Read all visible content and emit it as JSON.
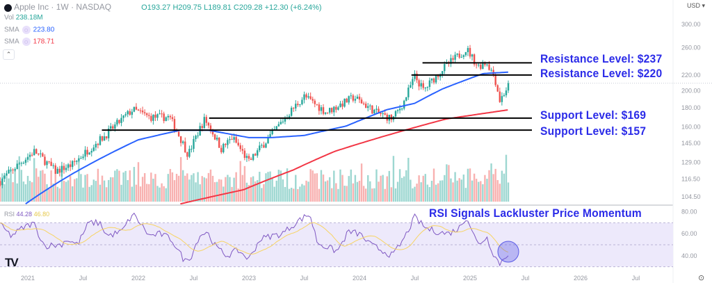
{
  "header": {
    "symbol": "Apple Inc · 1W · NASDAQ",
    "open": "O193.27",
    "high": "H209.75",
    "low": "L189.81",
    "close": "C209.28",
    "change": "+12.30 (+6.24%)",
    "vol_label": "Vol",
    "vol_value": "238.18M",
    "sma1_label": "SMA",
    "sma1_value": "223.80",
    "sma2_label": "SMA",
    "sma2_value": "178.71",
    "currency": "USD ▾"
  },
  "colors": {
    "up": "#26a69a",
    "down": "#ef5350",
    "sma_fast": "#2962ff",
    "sma_slow": "#f23645",
    "annotation": "#2b2be8",
    "rsi": "#7e57c2",
    "rsi_ma": "#f7d463"
  },
  "chart_data": {
    "type": "candlestick",
    "title": "Apple Inc · 1W · NASDAQ",
    "y_scale": "log",
    "price_ticks": [
      300,
      260,
      220,
      200,
      180,
      160,
      145,
      129,
      116.5,
      104.5
    ],
    "price_tick_labels": [
      "300.00",
      "260.00",
      "220.00",
      "200.00",
      "180.00",
      "160.00",
      "145.00",
      "129.00",
      "116.50",
      "104.50"
    ],
    "x_ticks": [
      {
        "t": 2021,
        "label": "2021"
      },
      {
        "t": 2021.5,
        "label": "Jul"
      },
      {
        "t": 2022,
        "label": "2022"
      },
      {
        "t": 2022.5,
        "label": "Jul"
      },
      {
        "t": 2023,
        "label": "2023"
      },
      {
        "t": 2023.5,
        "label": "Jul"
      },
      {
        "t": 2024,
        "label": "2024"
      },
      {
        "t": 2024.5,
        "label": "Jul"
      },
      {
        "t": 2025,
        "label": "2025"
      },
      {
        "t": 2025.5,
        "label": "Jul"
      },
      {
        "t": 2026,
        "label": "2026"
      },
      {
        "t": 2026.5,
        "label": "Jul"
      }
    ],
    "close_keypoints": [
      [
        2020.75,
        115
      ],
      [
        2021.06,
        138
      ],
      [
        2021.25,
        122
      ],
      [
        2021.4,
        127
      ],
      [
        2021.7,
        152
      ],
      [
        2021.95,
        178
      ],
      [
        2022.1,
        170
      ],
      [
        2022.28,
        170
      ],
      [
        2022.45,
        135
      ],
      [
        2022.6,
        168
      ],
      [
        2022.75,
        140
      ],
      [
        2022.85,
        150
      ],
      [
        2023.0,
        129
      ],
      [
        2023.2,
        152
      ],
      [
        2023.5,
        193
      ],
      [
        2023.7,
        175
      ],
      [
        2023.95,
        192
      ],
      [
        2024.15,
        175
      ],
      [
        2024.3,
        168
      ],
      [
        2024.4,
        186
      ],
      [
        2024.5,
        218
      ],
      [
        2024.58,
        200
      ],
      [
        2024.75,
        228
      ],
      [
        2024.97,
        258
      ],
      [
        2025.07,
        232
      ],
      [
        2025.15,
        238
      ],
      [
        2025.22,
        218
      ],
      [
        2025.27,
        188
      ],
      [
        2025.36,
        209
      ]
    ],
    "sma_fast": {
      "name": "SMA",
      "value": "223.80",
      "keypoints": [
        [
          2020.98,
          100
        ],
        [
          2021.4,
          120
        ],
        [
          2022.0,
          148
        ],
        [
          2022.38,
          157
        ],
        [
          2022.63,
          157
        ],
        [
          2023.0,
          150
        ],
        [
          2023.2,
          150
        ],
        [
          2023.5,
          152
        ],
        [
          2023.88,
          161
        ],
        [
          2024.25,
          178
        ],
        [
          2024.5,
          185
        ],
        [
          2024.75,
          202
        ],
        [
          2025.12,
          222
        ],
        [
          2025.36,
          224
        ]
      ]
    },
    "sma_slow": {
      "name": "SMA",
      "value": "178.71",
      "keypoints": [
        [
          2022.38,
          100
        ],
        [
          2022.95,
          109
        ],
        [
          2023.4,
          123
        ],
        [
          2023.78,
          138
        ],
        [
          2024.28,
          153
        ],
        [
          2024.78,
          168
        ],
        [
          2025.36,
          178
        ]
      ]
    },
    "levels": [
      {
        "label": "Resistance Level: $237",
        "price": 237,
        "from": 2024.57
      },
      {
        "label": "Resistance Level: $220",
        "price": 220,
        "from": 2024.47
      },
      {
        "label": "Support Level: $169",
        "price": 169,
        "from": 2022.64
      },
      {
        "label": "Support Level: $157",
        "price": 157,
        "from": 2021.67
      }
    ],
    "last_price": 209.28,
    "rsi": {
      "label": "RSI",
      "value": "44.28",
      "ma_value": "46.80",
      "title": "RSI Signals Lackluster Price Momentum",
      "ticks": [
        80,
        60,
        40
      ],
      "tick_labels": [
        "80.00",
        "60.00",
        "40.00"
      ],
      "bands": [
        70,
        50,
        30
      ],
      "keypoints": [
        [
          2020.75,
          68
        ],
        [
          2020.85,
          58
        ],
        [
          2020.95,
          65
        ],
        [
          2021.05,
          70
        ],
        [
          2021.15,
          49
        ],
        [
          2021.3,
          50
        ],
        [
          2021.35,
          55
        ],
        [
          2021.45,
          50
        ],
        [
          2021.55,
          70
        ],
        [
          2021.65,
          70
        ],
        [
          2021.72,
          58
        ],
        [
          2021.85,
          62
        ],
        [
          2021.95,
          78
        ],
        [
          2022.0,
          72
        ],
        [
          2022.1,
          58
        ],
        [
          2022.2,
          60
        ],
        [
          2022.3,
          55
        ],
        [
          2022.42,
          35
        ],
        [
          2022.48,
          40
        ],
        [
          2022.55,
          58
        ],
        [
          2022.62,
          62
        ],
        [
          2022.7,
          48
        ],
        [
          2022.8,
          40
        ],
        [
          2022.9,
          45
        ],
        [
          2023.0,
          37
        ],
        [
          2023.1,
          55
        ],
        [
          2023.2,
          58
        ],
        [
          2023.3,
          60
        ],
        [
          2023.45,
          72
        ],
        [
          2023.55,
          78
        ],
        [
          2023.62,
          52
        ],
        [
          2023.7,
          48
        ],
        [
          2023.8,
          44
        ],
        [
          2023.9,
          62
        ],
        [
          2024.0,
          60
        ],
        [
          2024.1,
          50
        ],
        [
          2024.2,
          45
        ],
        [
          2024.3,
          40
        ],
        [
          2024.4,
          55
        ],
        [
          2024.5,
          75
        ],
        [
          2024.6,
          65
        ],
        [
          2024.7,
          62
        ],
        [
          2024.8,
          60
        ],
        [
          2024.9,
          65
        ],
        [
          2024.97,
          76
        ],
        [
          2025.07,
          50
        ],
        [
          2025.15,
          57
        ],
        [
          2025.22,
          40
        ],
        [
          2025.27,
          33
        ],
        [
          2025.36,
          44
        ]
      ]
    }
  }
}
